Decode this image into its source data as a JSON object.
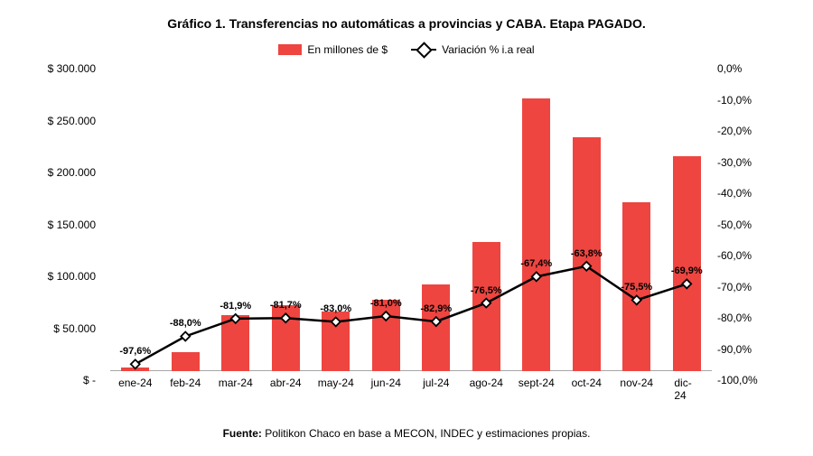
{
  "title": "Gráfico 1. Transferencias no automáticas a provincias y CABA. Etapa PAGADO.",
  "legend": {
    "bars_label": "En millones de $",
    "line_label": "Variación % i.a real"
  },
  "source_prefix": "Fuente: ",
  "source_text": "Politikon Chaco en base a MECON, INDEC y estimaciones propias.",
  "chart": {
    "type": "bar+line",
    "categories": [
      "ene-24",
      "feb-24",
      "mar-24",
      "abr-24",
      "may-24",
      "jun-24",
      "jul-24",
      "ago-24",
      "sept-24",
      "oct-24",
      "nov-24",
      "dic-24"
    ],
    "bar_values": [
      4000,
      20000,
      58000,
      68000,
      62000,
      74000,
      90000,
      134000,
      282000,
      242000,
      175000,
      222000
    ],
    "line_values": [
      -97.6,
      -88.0,
      -81.9,
      -81.7,
      -83.0,
      -81.0,
      -82.9,
      -76.5,
      -67.4,
      -63.8,
      -75.5,
      -69.9
    ],
    "line_labels": [
      "-97,6%",
      "-88,0%",
      "-81,9%",
      "-81,7%",
      "-83,0%",
      "-81,0%",
      "-82,9%",
      "-76,5%",
      "-67,4%",
      "-63,8%",
      "-75,5%",
      "-69,9%"
    ],
    "bar_color": "#ee4540",
    "line_color": "#000000",
    "marker_fill": "#ffffff",
    "background_color": "#ffffff",
    "grid_color": "#a6a6a6",
    "left_axis": {
      "min": 0,
      "max": 300000,
      "step": 50000,
      "tick_labels": [
        "$ -",
        "$ 50.000",
        "$ 100.000",
        "$ 150.000",
        "$ 200.000",
        "$ 250.000",
        "$ 300.000"
      ]
    },
    "right_axis": {
      "min": -100,
      "max": 0,
      "step": 10,
      "tick_labels": [
        "-100,0%",
        "-90,0%",
        "-80,0%",
        "-70,0%",
        "-60,0%",
        "-50,0%",
        "-40,0%",
        "-30,0%",
        "-20,0%",
        "-10,0%",
        "0,0%"
      ]
    },
    "bar_width_pct": 55,
    "line_width": 2.5,
    "marker_size": 7,
    "title_fontsize": 14,
    "tick_fontsize": 12,
    "data_label_fontsize": 11
  }
}
